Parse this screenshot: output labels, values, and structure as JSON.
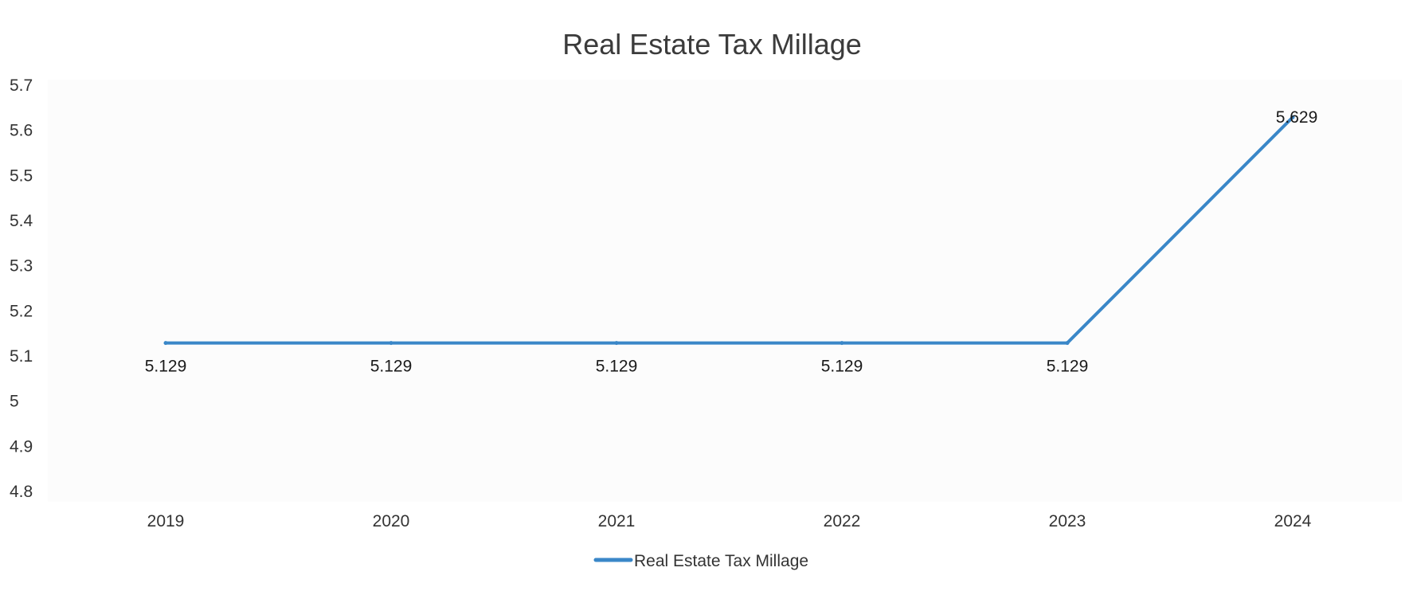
{
  "chart_data": {
    "type": "line",
    "title": "Real Estate Tax Millage",
    "categories": [
      "2019",
      "2020",
      "2021",
      "2022",
      "2023",
      "2024"
    ],
    "series": [
      {
        "name": "Real Estate Tax Millage",
        "values": [
          5.129,
          5.129,
          5.129,
          5.129,
          5.129,
          5.629
        ],
        "data_labels": [
          "5.129",
          "5.129",
          "5.129",
          "5.129",
          "5.129",
          "5.629"
        ],
        "color": "#3a87c8"
      }
    ],
    "ylim": [
      4.8,
      5.7
    ],
    "yticks": [
      "4.8",
      "4.9",
      "5",
      "5.1",
      "5.2",
      "5.3",
      "5.4",
      "5.5",
      "5.6",
      "5.7"
    ],
    "xlabel": "",
    "ylabel": "",
    "grid": false,
    "legend": "bottom-center"
  }
}
